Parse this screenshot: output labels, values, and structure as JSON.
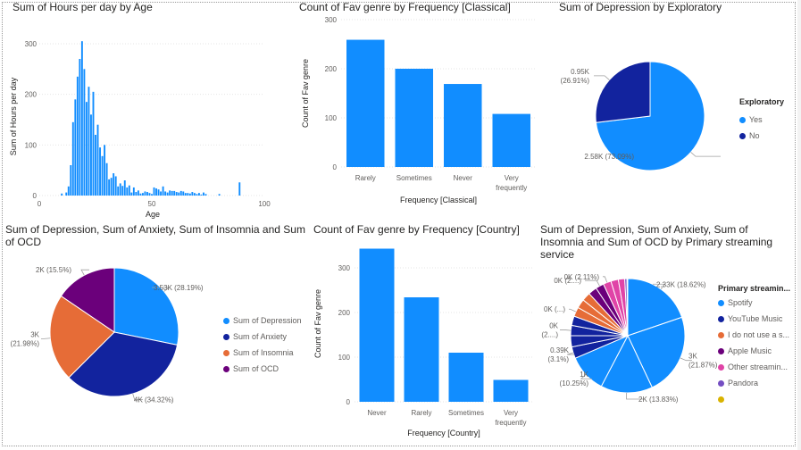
{
  "colors": {
    "primary": "#118dff",
    "navy": "#12239e",
    "orange": "#e66c37",
    "purple": "#6b007b",
    "pink": "#e044a7",
    "violet": "#744ec2",
    "gold": "#d9b300",
    "axis_text": "#605e5c",
    "grid": "#e6e6e6"
  },
  "panels": {
    "hours_by_age": {
      "title": "Sum of Hours per day by Age"
    },
    "classical": {
      "title": "Count of Fav genre by Frequency [Classical]"
    },
    "depression_exploratory": {
      "title": "Sum of Depression by Exploratory",
      "legend_title": "Exploratory",
      "legend_items": [
        {
          "label": "Yes",
          "color": "#118dff"
        },
        {
          "label": "No",
          "color": "#12239e"
        }
      ]
    },
    "mental_health": {
      "title": "Sum of Depression, Sum of Anxiety, Sum of Insomnia and Sum of OCD",
      "legend_items": [
        {
          "label": "Sum of Depression",
          "color": "#118dff"
        },
        {
          "label": "Sum of Anxiety",
          "color": "#12239e"
        },
        {
          "label": "Sum of Insomnia",
          "color": "#e66c37"
        },
        {
          "label": "Sum of OCD",
          "color": "#6b007b"
        }
      ]
    },
    "country": {
      "title": "Count of Fav genre by Frequency [Country]"
    },
    "streaming": {
      "title": "Sum of Depression, Sum of Anxiety, Sum of Insomnia and Sum of OCD by Primary streaming service",
      "legend_title": "Primary streamin...",
      "legend_items": [
        {
          "label": "Spotify",
          "color": "#118dff"
        },
        {
          "label": "YouTube Music",
          "color": "#12239e"
        },
        {
          "label": "I do not use a s...",
          "color": "#e66c37"
        },
        {
          "label": "Apple Music",
          "color": "#6b007b"
        },
        {
          "label": "Other streamin...",
          "color": "#e044a7"
        },
        {
          "label": "Pandora",
          "color": "#744ec2"
        },
        {
          "label": "",
          "color": "#d9b300"
        }
      ]
    }
  },
  "chart_data": [
    {
      "type": "bar",
      "title": "Sum of Hours per day by Age",
      "xlabel": "Age",
      "ylabel": "Sum of Hours per day",
      "xlim": [
        0,
        100
      ],
      "ylim": [
        0,
        300
      ],
      "x_ticks": [
        "0",
        "50",
        "100"
      ],
      "y_ticks": [
        "0",
        "100",
        "200",
        "300"
      ],
      "x": [
        10,
        12,
        13,
        14,
        15,
        16,
        17,
        18,
        19,
        20,
        21,
        22,
        23,
        24,
        25,
        26,
        27,
        28,
        29,
        30,
        31,
        32,
        33,
        34,
        35,
        36,
        37,
        38,
        39,
        40,
        41,
        42,
        43,
        44,
        45,
        46,
        47,
        48,
        49,
        50,
        51,
        52,
        53,
        54,
        55,
        56,
        57,
        58,
        59,
        60,
        61,
        62,
        63,
        64,
        65,
        66,
        67,
        68,
        69,
        70,
        71,
        72,
        73,
        74,
        80,
        89
      ],
      "values": [
        4,
        6,
        18,
        60,
        145,
        190,
        235,
        270,
        305,
        250,
        185,
        215,
        160,
        205,
        120,
        140,
        95,
        78,
        100,
        64,
        32,
        35,
        44,
        38,
        18,
        24,
        19,
        30,
        16,
        20,
        6,
        16,
        7,
        10,
        4,
        5,
        8,
        7,
        5,
        3,
        16,
        14,
        12,
        8,
        18,
        8,
        6,
        10,
        9,
        9,
        7,
        6,
        9,
        8,
        5,
        5,
        4,
        7,
        5,
        3,
        5,
        2,
        6,
        3,
        3,
        26
      ]
    },
    {
      "type": "bar",
      "title": "Count of Fav genre by Frequency [Classical]",
      "xlabel": "Frequency [Classical]",
      "ylabel": "Count of Fav genre",
      "ylim": [
        0,
        300
      ],
      "y_ticks": [
        "0",
        "100",
        "200",
        "300"
      ],
      "categories": [
        "Rarely",
        "Sometimes",
        "Never",
        "Very frequently"
      ],
      "values": [
        259,
        200,
        169,
        108
      ]
    },
    {
      "type": "pie",
      "title": "Sum of Depression by Exploratory",
      "legend_title": "Exploratory",
      "legend_position": "right",
      "slices": [
        {
          "label": "Yes",
          "value": 2580,
          "percent": 73.09,
          "text": "2.58K (73.09%)",
          "color": "#118dff"
        },
        {
          "label": "No",
          "value": 950,
          "percent": 26.91,
          "text": "0.95K (26.91%)",
          "color": "#12239e"
        }
      ]
    },
    {
      "type": "pie",
      "title": "Sum of Depression, Sum of Anxiety, Sum of Insomnia and Sum of OCD",
      "legend_position": "right",
      "slices": [
        {
          "label": "Sum of Depression",
          "value": 3530,
          "percent": 28.19,
          "text": "3.53K (28.19%)",
          "color": "#118dff"
        },
        {
          "label": "Sum of Anxiety",
          "value": 4000,
          "percent": 34.32,
          "text": "4K (34.32%)",
          "color": "#12239e"
        },
        {
          "label": "Sum of Insomnia",
          "value": 3000,
          "percent": 21.98,
          "text": "3K (21.98%)",
          "color": "#e66c37"
        },
        {
          "label": "Sum of OCD",
          "value": 2000,
          "percent": 15.5,
          "text": "2K (15.5%)",
          "color": "#6b007b"
        }
      ]
    },
    {
      "type": "bar",
      "title": "Count of Fav genre by Frequency [Country]",
      "xlabel": "Frequency [Country]",
      "ylabel": "Count of Fav genre",
      "ylim": [
        0,
        350
      ],
      "y_ticks": [
        "0",
        "100",
        "200",
        "300"
      ],
      "categories": [
        "Never",
        "Rarely",
        "Sometimes",
        "Very frequently"
      ],
      "values": [
        343,
        234,
        110,
        49
      ]
    },
    {
      "type": "pie",
      "title": "Sum of Depression, Sum of Anxiety, Sum of Insomnia and Sum of OCD by Primary streaming service",
      "legend_title": "Primary streamin...",
      "legend_position": "right",
      "slices": [
        {
          "label": "Spotify",
          "value": 2330,
          "percent": 18.62,
          "text": "2.33K (18.62%)",
          "color": "#118dff"
        },
        {
          "label": "Spotify",
          "value": 3000,
          "percent": 21.87,
          "text": "3K (21.87%)",
          "color": "#118dff"
        },
        {
          "label": "Spotify",
          "value": 2000,
          "percent": 13.83,
          "text": "2K (13.83%)",
          "color": "#118dff"
        },
        {
          "label": "Spotify",
          "value": 1000,
          "percent": 10.25,
          "text": "1K (10.25%)",
          "color": "#118dff"
        },
        {
          "label": "YouTube Music",
          "value": 390,
          "percent": 3.1,
          "text": "0.39K (3.1%)",
          "color": "#12239e"
        },
        {
          "label": "YouTube Music",
          "value": 380,
          "percent": 3.0,
          "text": "",
          "color": "#12239e"
        },
        {
          "label": "YouTube Music",
          "value": 340,
          "percent": 2.7,
          "text": "0K (2....)",
          "color": "#12239e"
        },
        {
          "label": "YouTube Music",
          "value": 320,
          "percent": 2.5,
          "text": "",
          "color": "#12239e"
        },
        {
          "label": "I do not use a s...",
          "value": 300,
          "percent": 2.5,
          "text": "0K (...)",
          "color": "#e66c37"
        },
        {
          "label": "I do not use a s...",
          "value": 300,
          "percent": 2.4,
          "text": "",
          "color": "#e66c37"
        },
        {
          "label": "I do not use a s...",
          "value": 300,
          "percent": 2.3,
          "text": "",
          "color": "#e66c37"
        },
        {
          "label": "Apple Music",
          "value": 300,
          "percent": 2.3,
          "text": "",
          "color": "#6b007b"
        },
        {
          "label": "Apple Music",
          "value": 280,
          "percent": 2.2,
          "text": "0K (2....)",
          "color": "#6b007b"
        },
        {
          "label": "Other streamin...",
          "value": 270,
          "percent": 2.11,
          "text": "0K (2.11%)",
          "color": "#e044a7"
        },
        {
          "label": "Other streamin...",
          "value": 260,
          "percent": 2.0,
          "text": "",
          "color": "#e044a7"
        },
        {
          "label": "Other streamin...",
          "value": 220,
          "percent": 1.7,
          "text": "",
          "color": "#e044a7"
        },
        {
          "label": "Pandora",
          "value": 100,
          "percent": 0.6,
          "text": "",
          "color": "#744ec2"
        },
        {
          "label": "",
          "value": 50,
          "percent": 0.2,
          "text": "",
          "color": "#d9b300"
        }
      ]
    }
  ]
}
